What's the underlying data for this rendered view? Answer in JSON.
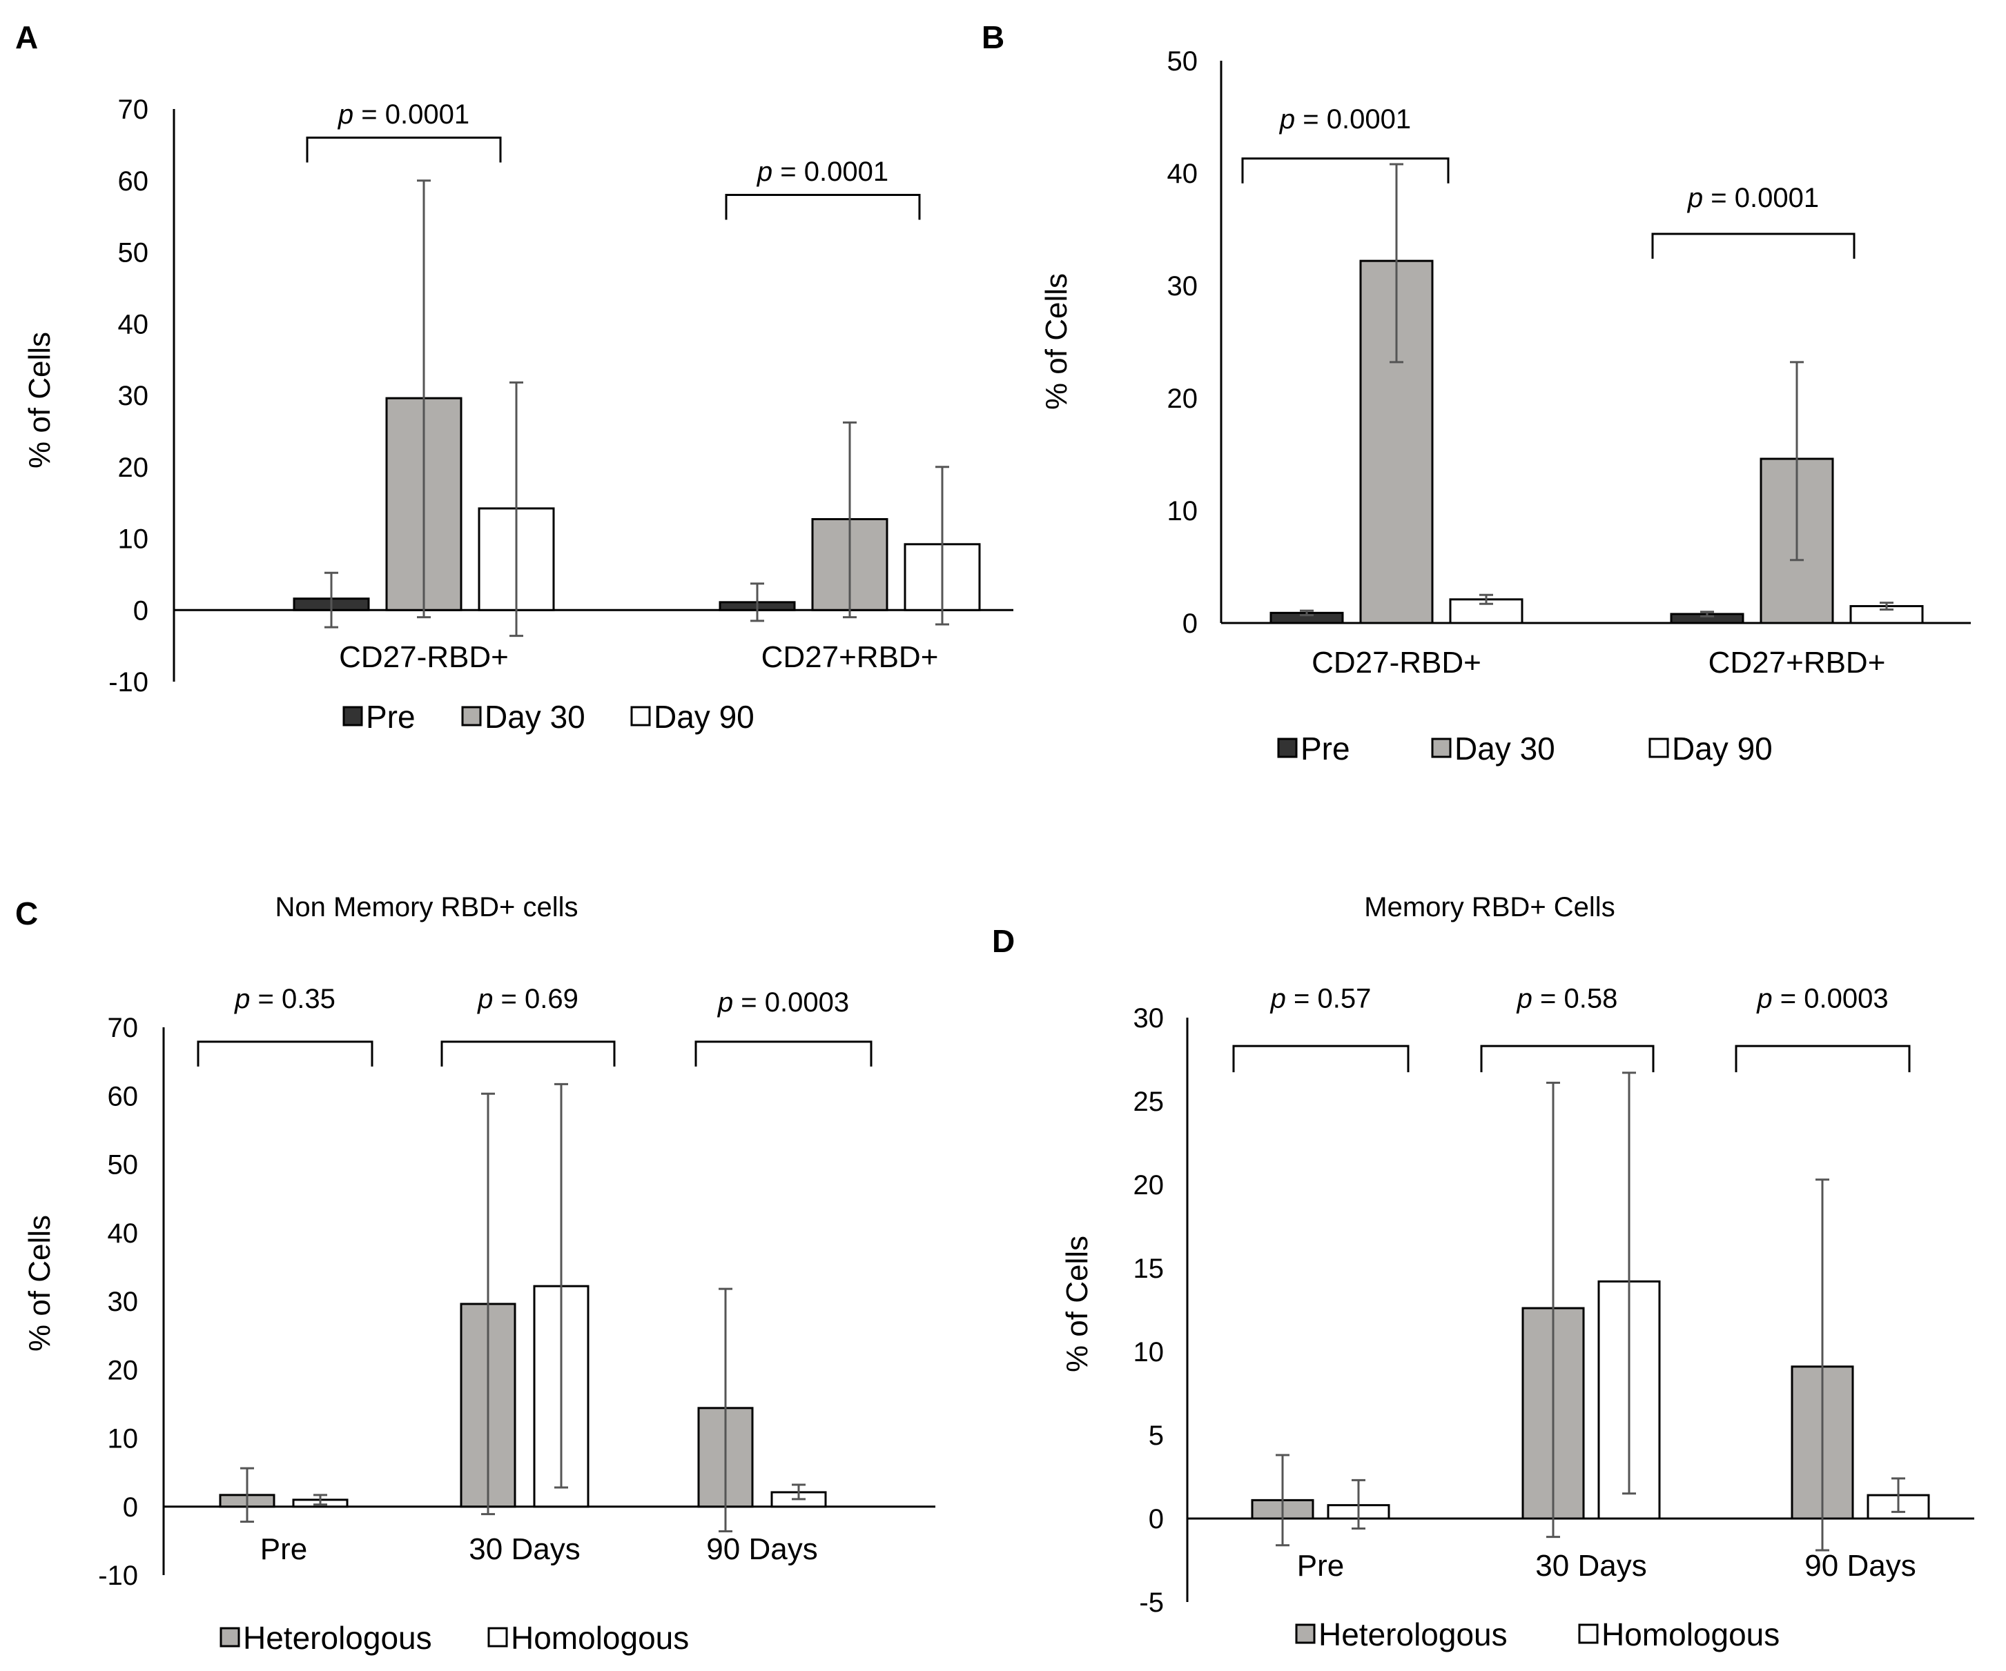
{
  "colors": {
    "Pre": "#333333",
    "Day 30": "#b0aeab",
    "Day 90": "#ffffff",
    "Heterologous": "#b0aeab",
    "Homologous": "#ffffff",
    "error_bar": "#555555",
    "axis": "#000000"
  },
  "chart_data": [
    {
      "panel": "A",
      "type": "bar",
      "title": "",
      "ylabel": "% of Cells",
      "ylim": [
        -10,
        70
      ],
      "yticks": [
        -10,
        0,
        10,
        20,
        30,
        40,
        50,
        60,
        70
      ],
      "categories": [
        "CD27-RBD+",
        "CD27+RBD+"
      ],
      "series": [
        {
          "name": "Pre",
          "values": [
            1.6,
            1.1
          ],
          "err_low": [
            -2.4,
            -1.5
          ],
          "err_high": [
            5.2,
            3.7
          ]
        },
        {
          "name": "Day 30",
          "values": [
            29.6,
            12.7
          ],
          "err_low": [
            -1.0,
            -1.0
          ],
          "err_high": [
            60.0,
            26.2
          ]
        },
        {
          "name": "Day 90",
          "values": [
            14.2,
            9.2
          ],
          "err_low": [
            -3.6,
            -2.0
          ],
          "err_high": [
            31.8,
            20.0
          ]
        }
      ],
      "annotations": [
        {
          "p": "p",
          "text": " = 0.0001",
          "y": 68,
          "bracket_y": 66
        },
        {
          "p": "p",
          "text": " = 0.0001",
          "y": 60,
          "bracket_y": 58
        }
      ],
      "legend": [
        "Pre",
        "Day 30",
        "Day 90"
      ]
    },
    {
      "panel": "B",
      "type": "bar",
      "title": "",
      "ylabel": "% of Cells",
      "ylim": [
        0,
        50
      ],
      "yticks": [
        0,
        10,
        20,
        30,
        40,
        50
      ],
      "categories": [
        "CD27-RBD+",
        "CD27+RBD+"
      ],
      "series": [
        {
          "name": "Pre",
          "values": [
            0.9,
            0.8
          ],
          "err_low": [
            0.7,
            0.6
          ],
          "err_high": [
            1.1,
            1.0
          ]
        },
        {
          "name": "Day 30",
          "values": [
            32.2,
            14.6
          ],
          "err_low": [
            23.2,
            5.6
          ],
          "err_high": [
            40.8,
            23.2
          ]
        },
        {
          "name": "Day 90",
          "values": [
            2.1,
            1.5
          ],
          "err_low": [
            1.7,
            1.2
          ],
          "err_high": [
            2.5,
            1.8
          ]
        }
      ],
      "annotations": [
        {
          "p": "p",
          "text": " = 0.0001",
          "y": 44,
          "bracket_y": 41.3
        },
        {
          "p": "p",
          "text": " = 0.0001",
          "y": 37,
          "bracket_y": 34.6
        }
      ],
      "legend": [
        "Pre",
        "Day 30",
        "Day 90"
      ]
    },
    {
      "panel": "C",
      "type": "bar",
      "title": "Non Memory RBD+ cells",
      "ylabel": "% of Cells",
      "ylim": [
        -10,
        70
      ],
      "yticks": [
        -10,
        0,
        10,
        20,
        30,
        40,
        50,
        60,
        70
      ],
      "categories": [
        "Pre",
        "30 Days",
        "90 Days"
      ],
      "series": [
        {
          "name": "Heterologous",
          "values": [
            1.7,
            29.6,
            14.4
          ],
          "err_low": [
            -2.2,
            -1.1,
            -3.6
          ],
          "err_high": [
            5.6,
            60.3,
            31.8
          ]
        },
        {
          "name": "Homologous",
          "values": [
            1.0,
            32.2,
            2.1
          ],
          "err_low": [
            0.3,
            2.8,
            1.1
          ],
          "err_high": [
            1.7,
            61.7,
            3.2
          ]
        }
      ],
      "annotations": [
        {
          "p": "p",
          "text": " = 0.35",
          "y": 72.8,
          "bracket_y": 67.9
        },
        {
          "p": "p",
          "text": " = 0.69",
          "y": 72.8,
          "bracket_y": 67.9
        },
        {
          "p": "p",
          "text": " = 0.0003",
          "y": 72.3,
          "bracket_y": 67.9
        }
      ],
      "legend": [
        "Heterologous",
        "Homologous"
      ]
    },
    {
      "panel": "D",
      "type": "bar",
      "title": "Memory RBD+ Cells",
      "ylabel": "% of Cells",
      "ylim": [
        -5,
        30
      ],
      "yticks": [
        -5,
        0,
        5,
        10,
        15,
        20,
        25,
        30
      ],
      "categories": [
        "Pre",
        "30 Days",
        "90 Days"
      ],
      "series": [
        {
          "name": "Heterologous",
          "values": [
            1.1,
            12.6,
            9.1
          ],
          "err_low": [
            -1.6,
            -1.1,
            -1.9
          ],
          "err_high": [
            3.8,
            26.1,
            20.3
          ]
        },
        {
          "name": "Homologous",
          "values": [
            0.8,
            14.2,
            1.4
          ],
          "err_low": [
            -0.6,
            1.5,
            0.4
          ],
          "err_high": [
            2.3,
            26.7,
            2.4
          ]
        }
      ],
      "annotations": [
        {
          "p": "p",
          "text": " = 0.57",
          "y": 30.6,
          "bracket_y": 28.3
        },
        {
          "p": "p",
          "text": " = 0.58",
          "y": 30.6,
          "bracket_y": 28.3
        },
        {
          "p": "p",
          "text": " = 0.0003",
          "y": 30.6,
          "bracket_y": 28.3
        }
      ],
      "legend": [
        "Heterologous",
        "Homologous"
      ]
    }
  ]
}
